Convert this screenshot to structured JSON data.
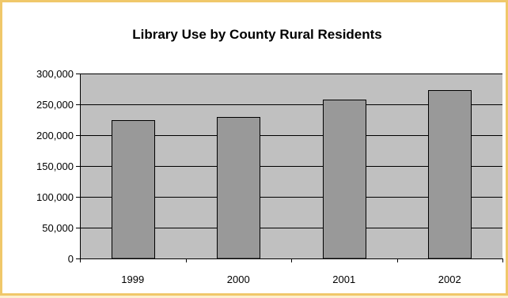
{
  "chart_data": {
    "type": "bar",
    "title": "Library Use by County Rural Residents",
    "categories": [
      "1999",
      "2000",
      "2001",
      "2002"
    ],
    "values": [
      224000,
      229000,
      258000,
      273000
    ],
    "xlabel": "",
    "ylabel": "",
    "ylim": [
      0,
      300000
    ],
    "yticks": [
      0,
      50000,
      100000,
      150000,
      200000,
      250000,
      300000
    ],
    "ytick_labels": [
      "0",
      "50,000",
      "100,000",
      "150,000",
      "200,000",
      "250,000",
      "300,000"
    ],
    "grid": true,
    "legend": "none"
  },
  "colors": {
    "plot_background": "#c0c0c0",
    "bar_fill": "#999999",
    "frame_border": "#f0c86a",
    "page_background": "#fdf0cf"
  }
}
